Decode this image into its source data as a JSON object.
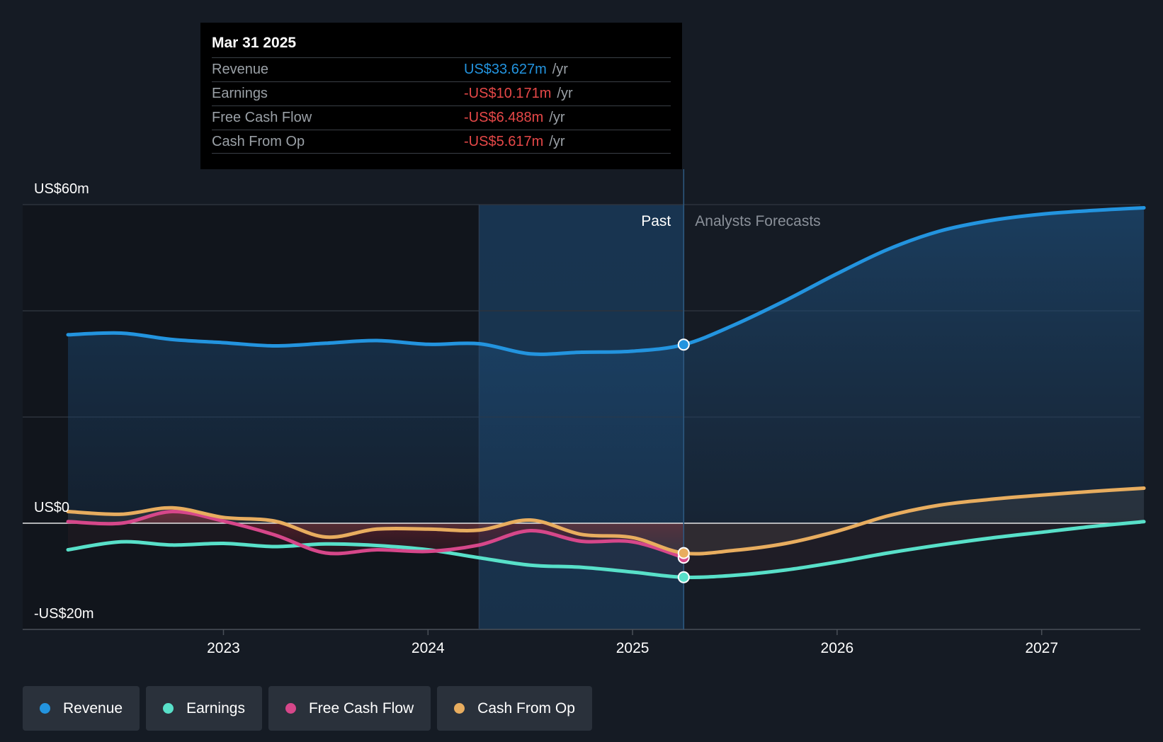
{
  "tooltip": {
    "date": "Mar 31 2025",
    "unit": "/yr",
    "rows": [
      {
        "label": "Revenue",
        "value": "US$33.627m",
        "color": "#2394df"
      },
      {
        "label": "Earnings",
        "value": "-US$10.171m",
        "color": "#e64848"
      },
      {
        "label": "Free Cash Flow",
        "value": "-US$6.488m",
        "color": "#e64848"
      },
      {
        "label": "Cash From Op",
        "value": "-US$5.617m",
        "color": "#e64848"
      }
    ]
  },
  "section_labels": {
    "past": "Past",
    "forecast": "Analysts Forecasts"
  },
  "legend": [
    {
      "label": "Revenue",
      "color": "#2394df"
    },
    {
      "label": "Earnings",
      "color": "#58e0c9"
    },
    {
      "label": "Free Cash Flow",
      "color": "#d6478a"
    },
    {
      "label": "Cash From Op",
      "color": "#e8ad5f"
    }
  ],
  "chart_data": {
    "type": "line",
    "x_range": [
      2022.24,
      2027.5
    ],
    "y_range": [
      -20,
      60
    ],
    "y_tick_labels": [
      {
        "value": 60,
        "label": "US$60m"
      },
      {
        "value": 0,
        "label": "US$0"
      },
      {
        "value": -20,
        "label": "-US$20m"
      }
    ],
    "gridlines": [
      60,
      40,
      20,
      -20
    ],
    "x_ticks": [
      {
        "value": 2023,
        "label": "2023"
      },
      {
        "value": 2024,
        "label": "2024"
      },
      {
        "value": 2025,
        "label": "2025"
      },
      {
        "value": 2026,
        "label": "2026"
      },
      {
        "value": 2027,
        "label": "2027"
      }
    ],
    "past_end": 2025.25,
    "highlight_start": 2024.25,
    "series": [
      {
        "name": "Revenue",
        "color": "#2394df",
        "points": [
          [
            2022.24,
            35.5
          ],
          [
            2022.5,
            35.8
          ],
          [
            2022.75,
            34.6
          ],
          [
            2023.0,
            34.0
          ],
          [
            2023.25,
            33.4
          ],
          [
            2023.5,
            33.9
          ],
          [
            2023.75,
            34.4
          ],
          [
            2024.0,
            33.7
          ],
          [
            2024.25,
            33.8
          ],
          [
            2024.5,
            31.9
          ],
          [
            2024.75,
            32.2
          ],
          [
            2025.0,
            32.4
          ],
          [
            2025.25,
            33.63
          ],
          [
            2025.5,
            37.4
          ],
          [
            2025.75,
            42.0
          ],
          [
            2026.0,
            47.0
          ],
          [
            2026.25,
            51.6
          ],
          [
            2026.5,
            55.0
          ],
          [
            2026.75,
            57.0
          ],
          [
            2027.0,
            58.2
          ],
          [
            2027.25,
            58.9
          ],
          [
            2027.5,
            59.4
          ]
        ],
        "marker": [
          2025.25,
          33.63
        ]
      },
      {
        "name": "Earnings",
        "color": "#58e0c9",
        "points": [
          [
            2022.24,
            -5.0
          ],
          [
            2022.5,
            -3.5
          ],
          [
            2022.75,
            -4.1
          ],
          [
            2023.0,
            -3.8
          ],
          [
            2023.25,
            -4.4
          ],
          [
            2023.5,
            -3.9
          ],
          [
            2023.75,
            -4.2
          ],
          [
            2024.0,
            -5.0
          ],
          [
            2024.25,
            -6.5
          ],
          [
            2024.5,
            -7.9
          ],
          [
            2024.75,
            -8.3
          ],
          [
            2025.0,
            -9.2
          ],
          [
            2025.25,
            -10.17
          ],
          [
            2025.5,
            -9.8
          ],
          [
            2025.75,
            -8.8
          ],
          [
            2026.0,
            -7.3
          ],
          [
            2026.25,
            -5.6
          ],
          [
            2026.5,
            -4.1
          ],
          [
            2026.75,
            -2.8
          ],
          [
            2027.0,
            -1.7
          ],
          [
            2027.25,
            -0.6
          ],
          [
            2027.5,
            0.3
          ]
        ],
        "marker": [
          2025.25,
          -10.17
        ]
      },
      {
        "name": "Free Cash Flow",
        "color": "#d6478a",
        "points": [
          [
            2022.24,
            0.3
          ],
          [
            2022.5,
            0.0
          ],
          [
            2022.75,
            2.2
          ],
          [
            2023.0,
            0.4
          ],
          [
            2023.25,
            -2.2
          ],
          [
            2023.5,
            -5.6
          ],
          [
            2023.75,
            -5.0
          ],
          [
            2024.0,
            -5.3
          ],
          [
            2024.25,
            -4.1
          ],
          [
            2024.5,
            -1.4
          ],
          [
            2024.75,
            -3.4
          ],
          [
            2025.0,
            -3.5
          ],
          [
            2025.25,
            -6.49
          ]
        ],
        "marker": [
          2025.25,
          -6.49
        ]
      },
      {
        "name": "Cash From Op",
        "color": "#e8ad5f",
        "points": [
          [
            2022.24,
            2.2
          ],
          [
            2022.5,
            1.7
          ],
          [
            2022.75,
            2.9
          ],
          [
            2023.0,
            1.1
          ],
          [
            2023.25,
            0.4
          ],
          [
            2023.5,
            -2.6
          ],
          [
            2023.75,
            -1.1
          ],
          [
            2024.0,
            -1.1
          ],
          [
            2024.25,
            -1.3
          ],
          [
            2024.5,
            0.6
          ],
          [
            2024.75,
            -2.1
          ],
          [
            2025.0,
            -2.7
          ],
          [
            2025.25,
            -5.62
          ],
          [
            2025.5,
            -5.1
          ],
          [
            2025.75,
            -3.8
          ],
          [
            2026.0,
            -1.5
          ],
          [
            2026.25,
            1.4
          ],
          [
            2026.5,
            3.4
          ],
          [
            2026.75,
            4.5
          ],
          [
            2027.0,
            5.3
          ],
          [
            2027.25,
            6.0
          ],
          [
            2027.5,
            6.6
          ]
        ],
        "marker": [
          2025.25,
          -5.62
        ]
      }
    ]
  }
}
